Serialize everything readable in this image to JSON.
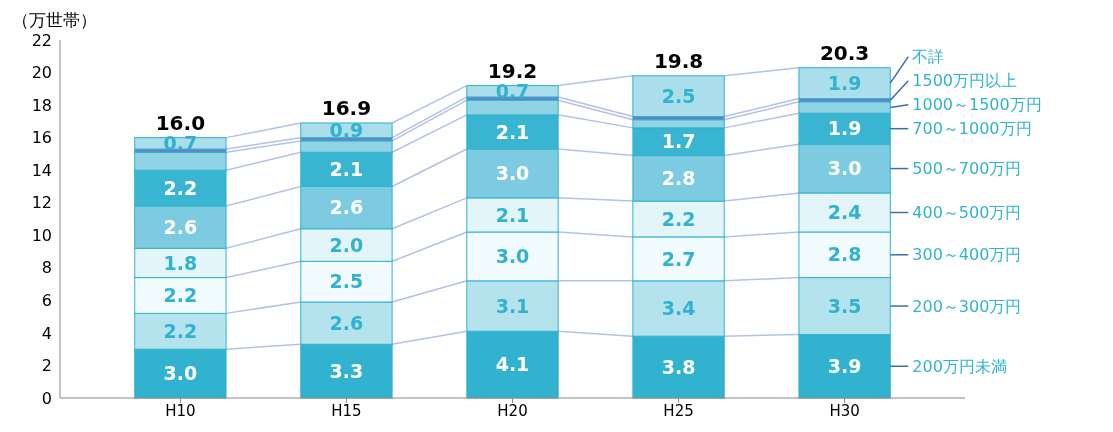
{
  "chart_data": {
    "type": "bar",
    "stacked": true,
    "ylabel": "（万世帯）",
    "categories": [
      "H10",
      "H15",
      "H20",
      "H25",
      "H30"
    ],
    "series": [
      {
        "name": "200万円未満",
        "color": "#31b2cf",
        "values": [
          3.0,
          3.3,
          4.1,
          3.8,
          3.9
        ],
        "value_labels": [
          "3.0",
          "3.3",
          "4.1",
          "3.8",
          "3.9"
        ]
      },
      {
        "name": "200～300万円",
        "color": "#b4e3ee",
        "values": [
          2.2,
          2.6,
          3.1,
          3.4,
          3.5
        ],
        "value_labels": [
          "2.2",
          "2.6",
          "3.1",
          "3.4",
          "3.5"
        ]
      },
      {
        "name": "300～400万円",
        "color": "#f2fbfd",
        "values": [
          2.2,
          2.5,
          3.0,
          2.7,
          2.8
        ],
        "value_labels": [
          "2.2",
          "2.5",
          "3.0",
          "2.7",
          "2.8"
        ]
      },
      {
        "name": "400～500万円",
        "color": "#e3f5f9",
        "values": [
          1.8,
          2.0,
          2.1,
          2.2,
          2.4
        ],
        "value_labels": [
          "1.8",
          "2.0",
          "2.1",
          "2.2",
          "2.4"
        ]
      },
      {
        "name": "500～700万円",
        "color": "#7dcbe0",
        "values": [
          2.6,
          2.6,
          3.0,
          2.8,
          3.0
        ],
        "value_labels": [
          "2.6",
          "2.6",
          "3.0",
          "2.8",
          "3.0"
        ]
      },
      {
        "name": "700～1000万円",
        "color": "#3ab5d1",
        "values": [
          2.2,
          2.1,
          2.1,
          1.7,
          1.9
        ],
        "value_labels": [
          "2.2",
          "2.1",
          "2.1",
          "1.7",
          "1.9"
        ]
      },
      {
        "name": "1000～1500万円",
        "color": "#8fd3e4",
        "values": [
          1.1,
          0.7,
          0.9,
          0.5,
          0.7
        ],
        "value_labels": [
          null,
          null,
          null,
          null,
          null
        ]
      },
      {
        "name": "1500万円以上",
        "color": "#6a80c0",
        "values": [
          0.2,
          0.2,
          0.2,
          0.2,
          0.2
        ],
        "value_labels": [
          null,
          null,
          null,
          null,
          null
        ]
      },
      {
        "name": "不詳",
        "color": "#a9deea",
        "values": [
          0.7,
          0.9,
          0.7,
          2.5,
          1.9
        ],
        "value_labels": [
          "0.7",
          "0.9",
          "0.7",
          "2.5",
          "1.9"
        ]
      }
    ],
    "totals": [
      "16.0",
      "16.9",
      "19.2",
      "19.8",
      "20.3"
    ],
    "ylim": [
      0,
      22
    ],
    "yticks": [
      0,
      2,
      4,
      6,
      8,
      10,
      12,
      14,
      16,
      18,
      20,
      22
    ],
    "grid": false,
    "legend": "right"
  }
}
